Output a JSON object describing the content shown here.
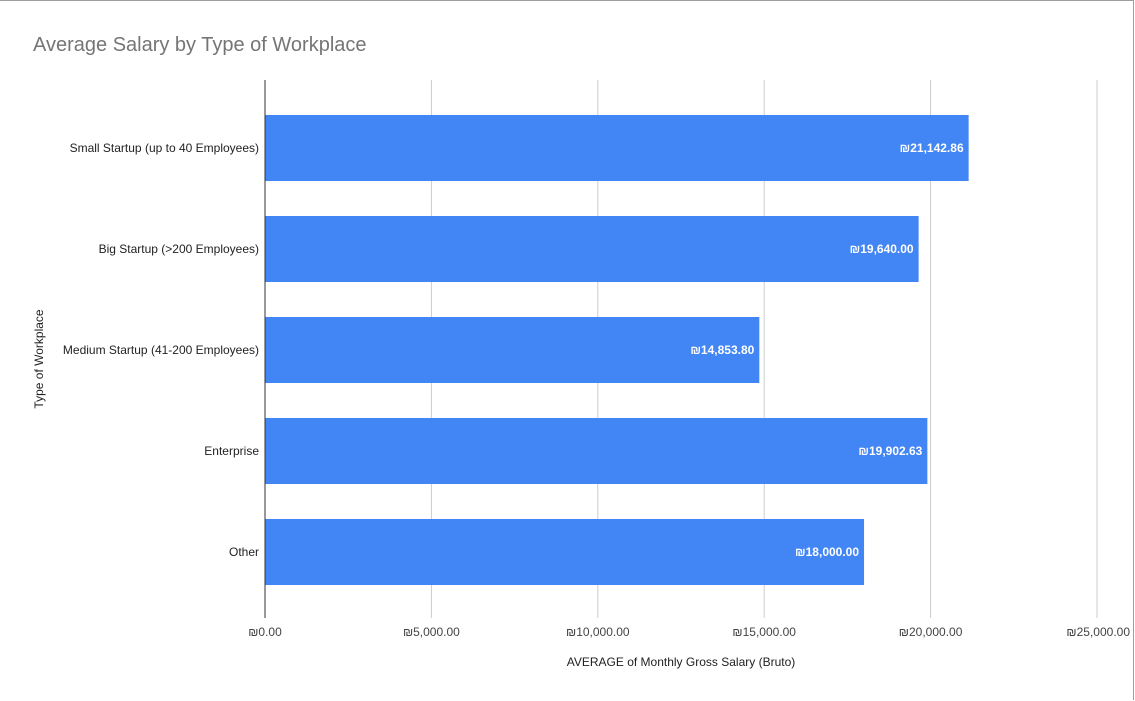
{
  "chart_data": {
    "type": "bar",
    "orientation": "horizontal",
    "title": "Average Salary by Type of Workplace",
    "xlabel": "AVERAGE of Monthly Gross Salary (Bruto)",
    "ylabel": "Type of Workplace",
    "categories": [
      "Small Startup (up to 40 Employees)",
      "Big Startup (>200 Employees)",
      "Medium Startup (41-200 Employees)",
      "Enterprise",
      "Other"
    ],
    "values": [
      21142.86,
      19640.0,
      14853.8,
      19902.63,
      18000.0
    ],
    "data_labels": [
      "₪21,142.86",
      "₪19,640.00",
      "₪14,853.80",
      "₪19,902.63",
      "₪18,000.00"
    ],
    "xlim": [
      0,
      25000
    ],
    "xticks": [
      0,
      5000,
      10000,
      15000,
      20000,
      25000
    ],
    "xtick_labels": [
      "₪0.00",
      "₪5,000.00",
      "₪10,000.00",
      "₪15,000.00",
      "₪20,000.00",
      "₪25,000.00"
    ],
    "grid": true,
    "legend": "none",
    "bar_color": "#4285f4"
  }
}
